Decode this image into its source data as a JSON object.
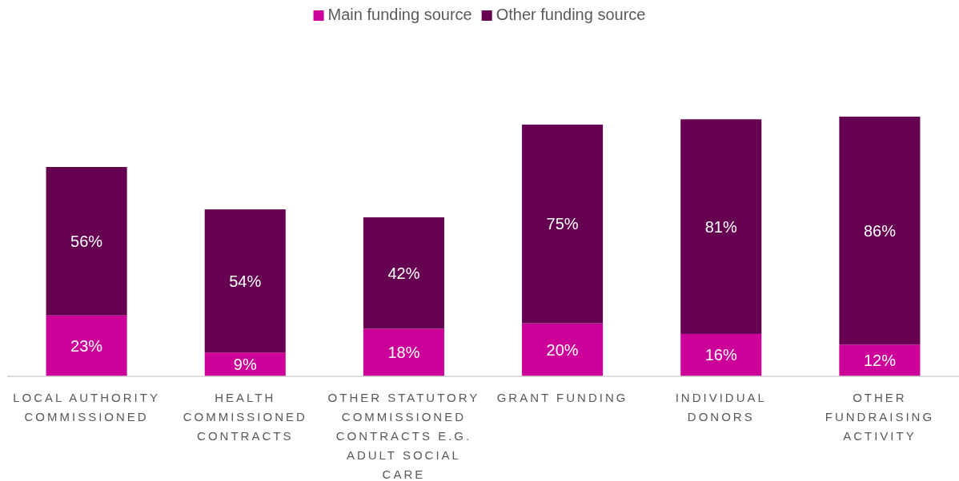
{
  "chart_data": {
    "type": "bar",
    "stacked": true,
    "legend": "top",
    "categories": [
      "LOCAL AUTHORITY COMMISSIONED",
      "HEALTH COMMISSIONED CONTRACTS",
      "OTHER STATUTORY COMMISSIONED CONTRACTS E.G. ADULT SOCIAL CARE",
      "GRANT FUNDING",
      "INDIVIDUAL DONORS",
      "OTHER FUNDRAISING ACTIVITY"
    ],
    "series": [
      {
        "name": "Main funding source",
        "color": "#cc0099",
        "values": [
          23,
          9,
          18,
          20,
          16,
          12
        ],
        "value_labels": [
          "23%",
          "9%",
          "18%",
          "20%",
          "16%",
          "12%"
        ]
      },
      {
        "name": "Other funding source",
        "color": "#660050",
        "values": [
          56,
          54,
          42,
          75,
          81,
          86
        ],
        "value_labels": [
          "56%",
          "54%",
          "42%",
          "75%",
          "81%",
          "86%"
        ]
      }
    ]
  }
}
